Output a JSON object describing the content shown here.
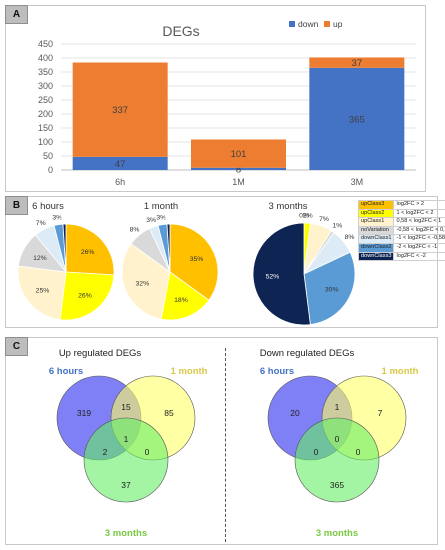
{
  "panels": {
    "a": "A",
    "b": "B",
    "c": "C"
  },
  "chart_data": [
    {
      "type": "bar",
      "stacked": true,
      "title": "DEGs",
      "categories": [
        "6h",
        "1M",
        "3M"
      ],
      "series": [
        {
          "name": "down",
          "color": "#4472c4",
          "values": [
            47,
            8,
            365
          ]
        },
        {
          "name": "up",
          "color": "#ed7d31",
          "values": [
            337,
            101,
            37
          ]
        }
      ],
      "ylim": [
        0,
        450
      ],
      "yticks": [
        0,
        50,
        100,
        150,
        200,
        250,
        300,
        350,
        400,
        450
      ],
      "grid": true,
      "legend": "top-right"
    },
    {
      "type": "pie",
      "title": "6 hours",
      "slices": [
        {
          "class": "upClass3",
          "value": 26,
          "label": "26%"
        },
        {
          "class": "upClass2",
          "value": 26,
          "label": "26%"
        },
        {
          "class": "upClass1",
          "value": 25,
          "label": "25%"
        },
        {
          "class": "noVariation",
          "value": 12,
          "label": "12%"
        },
        {
          "class": "downClass1",
          "value": 7,
          "label": "7%"
        },
        {
          "class": "downClass2",
          "value": 3,
          "label": "3%"
        },
        {
          "class": "downClass3",
          "value": 1,
          "label": "1%"
        }
      ]
    },
    {
      "type": "pie",
      "title": "1 month",
      "slices": [
        {
          "class": "upClass3",
          "value": 35,
          "label": "35%"
        },
        {
          "class": "upClass2",
          "value": 18,
          "label": "18%"
        },
        {
          "class": "upClass1",
          "value": 32,
          "label": "32%"
        },
        {
          "class": "noVariation",
          "value": 8,
          "label": "8%"
        },
        {
          "class": "downClass1",
          "value": 3,
          "label": "3%"
        },
        {
          "class": "downClass2",
          "value": 3,
          "label": "3%"
        },
        {
          "class": "downClass3",
          "value": 1,
          "label": "1%"
        }
      ]
    },
    {
      "type": "pie",
      "title": "3 months",
      "slices": [
        {
          "class": "upClass3",
          "value": 0,
          "label": "0%"
        },
        {
          "class": "upClass2",
          "value": 2,
          "label": "2%"
        },
        {
          "class": "upClass1",
          "value": 7,
          "label": "7%"
        },
        {
          "class": "noVariation",
          "value": 1,
          "label": "1%"
        },
        {
          "class": "downClass1",
          "value": 8,
          "label": "8%"
        },
        {
          "class": "downClass2",
          "value": 30,
          "label": "30%"
        },
        {
          "class": "downClass3",
          "value": 52,
          "label": "52%"
        }
      ]
    },
    {
      "type": "venn",
      "title": "Up regulated DEGs",
      "sets": [
        "6 hours",
        "1 month",
        "3 months"
      ],
      "regions": {
        "a_only": 319,
        "b_only": 85,
        "c_only": 37,
        "ab": 15,
        "ac": 2,
        "bc": 0,
        "abc": 1
      }
    },
    {
      "type": "venn",
      "title": "Down regulated DEGs",
      "sets": [
        "6 hours",
        "1 month",
        "3 months"
      ],
      "regions": {
        "a_only": 20,
        "b_only": 7,
        "c_only": 365,
        "ab": 1,
        "ac": 0,
        "bc": 0,
        "abc": 0
      }
    }
  ],
  "legend_classes": [
    {
      "name": "upClass3",
      "range": "log2FC > 2",
      "color": "#ffc000"
    },
    {
      "name": "upClass2",
      "range": "1 < log2FC < 2",
      "color": "#ffff00"
    },
    {
      "name": "upClass1",
      "range": "0,58 < log2FC < 1",
      "color": "#fff2cc"
    },
    {
      "name": "noVariation",
      "range": "-0,58 < log2FC < 0,58",
      "color": "#d9d9d9"
    },
    {
      "name": "downClass1",
      "range": "-1 < log2FC < -0,58",
      "color": "#ddebf7"
    },
    {
      "name": "downClass2",
      "range": "-2 < log2FC < -1",
      "color": "#5b9bd5"
    },
    {
      "name": "downClass3",
      "range": "log2FC < -2",
      "color": "#0e2452"
    }
  ],
  "venn_colors": {
    "6 hours": "#6a6af5",
    "1 month": "#ffff66",
    "3 months": "#66ee66"
  },
  "venn_label_colors": {
    "6 hours": "#4472c4",
    "1 month": "#d9c84a",
    "3 months": "#7ac943"
  }
}
